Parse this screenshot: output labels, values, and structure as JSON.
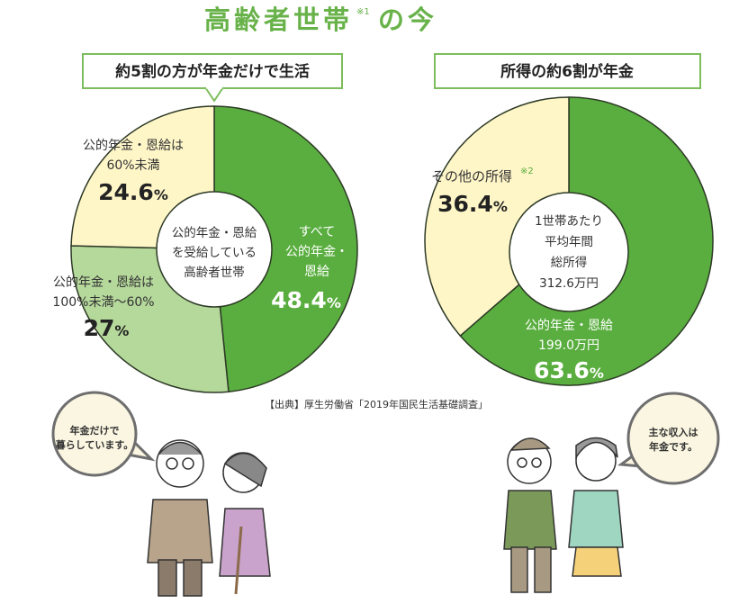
{
  "title": {
    "main": "高齢者世帯",
    "note": "※1",
    "tail": "の今"
  },
  "colors": {
    "green": "#5aae3f",
    "light_green": "#b5d89b",
    "yellow": "#fff6c8",
    "title_green": "#68b24a",
    "box_border": "#7cbd5c"
  },
  "source": "【出典】厚生労働省「2019年国民生活基礎調査」",
  "chart_data": [
    {
      "type": "pie",
      "title": "約5割の方が年金だけで生活",
      "center_label": [
        "公的年金・恩給",
        "を受給している",
        "高齢者世帯"
      ],
      "start": "top",
      "direction": "clockwise",
      "slices": [
        {
          "label": [
            "すべて",
            "公的年金・",
            "恩給"
          ],
          "value": 48.4,
          "value_label": "48.4",
          "color": "#5aae3f"
        },
        {
          "label": [
            "公的年金・恩給は",
            "100%未満〜60%"
          ],
          "value": 27,
          "value_label": "27",
          "color": "#b5d89b"
        },
        {
          "label": [
            "公的年金・恩給は",
            "60%未満"
          ],
          "value": 24.6,
          "value_label": "24.6",
          "color": "#fff6c8"
        }
      ],
      "unit": "%"
    },
    {
      "type": "pie",
      "title": "所得の約6割が年金",
      "center_label": [
        "1世帯あたり",
        "平均年間",
        "総所得",
        "312.6万円"
      ],
      "start": "top",
      "direction": "clockwise",
      "slices": [
        {
          "label": [
            "公的年金・恩給",
            "199.0万円"
          ],
          "value": 63.6,
          "value_label": "63.6",
          "color": "#5aae3f"
        },
        {
          "label": [
            "その他の所得"
          ],
          "note": "※2",
          "value": 36.4,
          "value_label": "36.4",
          "color": "#fff6c8"
        }
      ],
      "unit": "%"
    }
  ],
  "bubbles": {
    "left": [
      "年金だけで",
      "暮らしています。"
    ],
    "right": [
      "主な収入は",
      "年金です。"
    ]
  }
}
